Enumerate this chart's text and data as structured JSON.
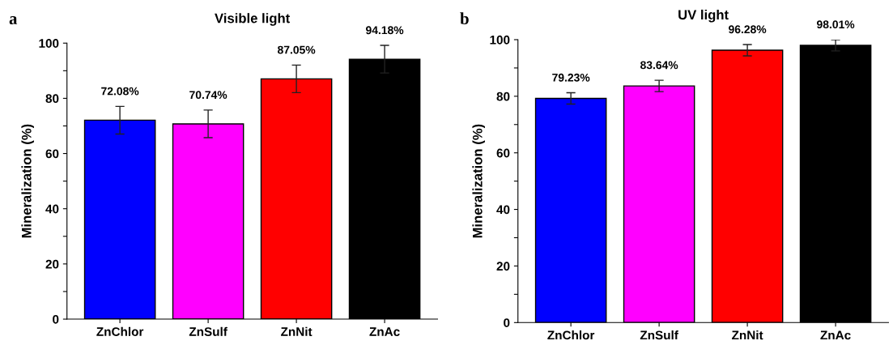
{
  "chart_data": [
    {
      "type": "bar",
      "title": "Visible light",
      "ylabel": "Mineralization (%)",
      "annotations": [
        "a"
      ],
      "categories": [
        "ZnChlor",
        "ZnSulf",
        "ZnNit",
        "ZnAc"
      ],
      "values": [
        72.08,
        70.74,
        87.05,
        94.18
      ],
      "colors": [
        "#0000ff",
        "#ff00ff",
        "#ff0000",
        "#000000"
      ],
      "errors": [
        5,
        5,
        5,
        5
      ],
      "value_labels": [
        "72.08%",
        "70.74%",
        "87.05%",
        "94.18%"
      ],
      "ylim": [
        0,
        100
      ],
      "yticks": [
        0,
        {
          "value": 10,
          "label": null
        },
        20,
        {
          "value": 30,
          "label": null
        },
        40,
        {
          "value": 50,
          "label": null
        },
        60,
        {
          "value": 70,
          "label": null
        },
        80,
        {
          "value": 90,
          "label": null
        },
        100
      ],
      "grid": false
    },
    {
      "type": "bar",
      "title": "UV light",
      "ylabel": "Mineralization (%)",
      "annotations": [
        "b"
      ],
      "categories": [
        "ZnChlor",
        "ZnSulf",
        "ZnNit",
        "ZnAc"
      ],
      "values": [
        79.23,
        83.64,
        96.28,
        98.01
      ],
      "colors": [
        "#0000ff",
        "#ff00ff",
        "#ff0000",
        "#000000"
      ],
      "errors": [
        2,
        2,
        2,
        2
      ],
      "value_labels": [
        "79.23%",
        "83.64%",
        "96.28%",
        "98.01%"
      ],
      "ylim": [
        0,
        100
      ],
      "yticks": [
        0,
        {
          "value": 10,
          "label": null
        },
        20,
        {
          "value": 30,
          "label": null
        },
        40,
        {
          "value": 50,
          "label": null
        },
        60,
        {
          "value": 70,
          "label": null
        },
        80,
        {
          "value": 90,
          "label": null
        },
        100
      ],
      "grid": false
    }
  ]
}
